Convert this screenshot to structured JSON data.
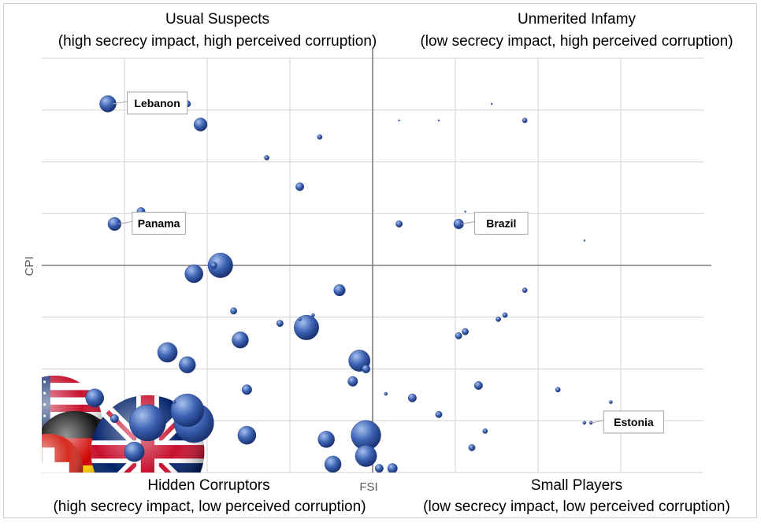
{
  "chart_data": {
    "type": "scatter",
    "xlabel": "FSI",
    "ylabel": "CPI",
    "quadrants": [
      {
        "title": "Usual Suspects",
        "subtitle": "(high secrecy impact, high perceived corruption)"
      },
      {
        "title": "Unmerited Infamy",
        "subtitle": "(low secrecy impact, high perceived corruption)"
      },
      {
        "title": "Hidden Corruptors",
        "subtitle": "(high secrecy impact, low perceived corruption)"
      },
      {
        "title": "Small Players",
        "subtitle": "(low secrecy impact, low perceived corruption)"
      }
    ],
    "grid": true,
    "x_reversed": true,
    "xlim": [
      0,
      1
    ],
    "ylim": [
      0,
      1
    ],
    "quadrant_split": {
      "x": 0.5,
      "y": 0.5
    },
    "labeled_points": [
      {
        "label": "Lebanon",
        "x": 0.9,
        "y": 0.89,
        "size": 10
      },
      {
        "label": "Panama",
        "x": 0.89,
        "y": 0.6,
        "size": 8
      },
      {
        "label": "Brazil",
        "x": 0.37,
        "y": 0.6,
        "size": 6
      },
      {
        "label": "Estonia",
        "x": 0.17,
        "y": 0.12,
        "size": 2
      }
    ],
    "points": [
      {
        "x": 0.78,
        "y": 0.89,
        "size": 4
      },
      {
        "x": 0.76,
        "y": 0.84,
        "size": 8
      },
      {
        "x": 0.58,
        "y": 0.81,
        "size": 3
      },
      {
        "x": 0.66,
        "y": 0.76,
        "size": 3
      },
      {
        "x": 0.61,
        "y": 0.69,
        "size": 5
      },
      {
        "x": 0.85,
        "y": 0.63,
        "size": 5
      },
      {
        "x": 0.46,
        "y": 0.6,
        "size": 4
      },
      {
        "x": 0.73,
        "y": 0.5,
        "size": 15
      },
      {
        "x": 0.74,
        "y": 0.5,
        "size": 4
      },
      {
        "x": 0.77,
        "y": 0.48,
        "size": 11
      },
      {
        "x": 0.55,
        "y": 0.44,
        "size": 7
      },
      {
        "x": 0.71,
        "y": 0.39,
        "size": 4
      },
      {
        "x": 0.64,
        "y": 0.36,
        "size": 4
      },
      {
        "x": 0.6,
        "y": 0.35,
        "size": 15
      },
      {
        "x": 0.7,
        "y": 0.32,
        "size": 10
      },
      {
        "x": 0.81,
        "y": 0.29,
        "size": 12
      },
      {
        "x": 0.78,
        "y": 0.26,
        "size": 10
      },
      {
        "x": 0.52,
        "y": 0.27,
        "size": 13
      },
      {
        "x": 0.51,
        "y": 0.25,
        "size": 5
      },
      {
        "x": 0.53,
        "y": 0.22,
        "size": 6
      },
      {
        "x": 0.69,
        "y": 0.2,
        "size": 6
      },
      {
        "x": 0.92,
        "y": 0.18,
        "size": 11
      },
      {
        "x": 0.8,
        "y": 0.17,
        "size": 2
      },
      {
        "x": 0.78,
        "y": 0.15,
        "size": 20
      },
      {
        "x": 0.77,
        "y": 0.12,
        "size": 24
      },
      {
        "x": 0.89,
        "y": 0.13,
        "size": 5
      },
      {
        "x": 0.84,
        "y": 0.12,
        "size": 22
      },
      {
        "x": 0.69,
        "y": 0.09,
        "size": 11
      },
      {
        "x": 0.57,
        "y": 0.08,
        "size": 10
      },
      {
        "x": 0.51,
        "y": 0.09,
        "size": 18
      },
      {
        "x": 0.86,
        "y": 0.05,
        "size": 12
      },
      {
        "x": 0.51,
        "y": 0.04,
        "size": 13
      },
      {
        "x": 0.56,
        "y": 0.02,
        "size": 10
      },
      {
        "x": 0.49,
        "y": 0.01,
        "size": 5
      },
      {
        "x": 0.47,
        "y": 0.01,
        "size": 6
      },
      {
        "x": 0.59,
        "y": 0.38,
        "size": 2
      },
      {
        "x": 0.61,
        "y": 0.37,
        "size": 2
      },
      {
        "x": 0.48,
        "y": 0.19,
        "size": 2
      },
      {
        "x": 0.44,
        "y": 0.18,
        "size": 5
      },
      {
        "x": 0.4,
        "y": 0.14,
        "size": 4
      },
      {
        "x": 0.34,
        "y": 0.21,
        "size": 5
      },
      {
        "x": 0.37,
        "y": 0.33,
        "size": 4
      },
      {
        "x": 0.35,
        "y": 0.06,
        "size": 4
      },
      {
        "x": 0.33,
        "y": 0.1,
        "size": 3
      },
      {
        "x": 0.36,
        "y": 0.34,
        "size": 4
      },
      {
        "x": 0.31,
        "y": 0.37,
        "size": 3
      },
      {
        "x": 0.3,
        "y": 0.38,
        "size": 3
      },
      {
        "x": 0.27,
        "y": 0.44,
        "size": 3
      },
      {
        "x": 0.22,
        "y": 0.2,
        "size": 3
      },
      {
        "x": 0.18,
        "y": 0.12,
        "size": 2
      },
      {
        "x": 0.14,
        "y": 0.17,
        "size": 2
      },
      {
        "x": 0.11,
        "y": 0.12,
        "size": 2
      },
      {
        "x": 0.18,
        "y": 0.56,
        "size": 1
      },
      {
        "x": 0.32,
        "y": 0.89,
        "size": 1
      },
      {
        "x": 0.27,
        "y": 0.85,
        "size": 3
      },
      {
        "x": 0.4,
        "y": 0.85,
        "size": 1
      },
      {
        "x": 0.46,
        "y": 0.85,
        "size": 1
      },
      {
        "x": 0.36,
        "y": 0.63,
        "size": 1
      }
    ],
    "flag_bubbles": [
      {
        "country_flag": "us-flag",
        "x": 0.98,
        "y": 0.12,
        "size": 30
      },
      {
        "country_flag": "de-flag",
        "x": 0.95,
        "y": 0.05,
        "size": 26
      },
      {
        "country_flag": "ch-flag",
        "x": 0.99,
        "y": 0.01,
        "size": 22
      },
      {
        "country_flag": "uk-flag",
        "x": 0.84,
        "y": 0.05,
        "size": 36
      }
    ],
    "colors": {
      "bubble": "#2f55a4",
      "bubble_highlight": "#a7c0ee",
      "grid": "#d9d9d9",
      "divider": "#7f7f7f"
    }
  }
}
